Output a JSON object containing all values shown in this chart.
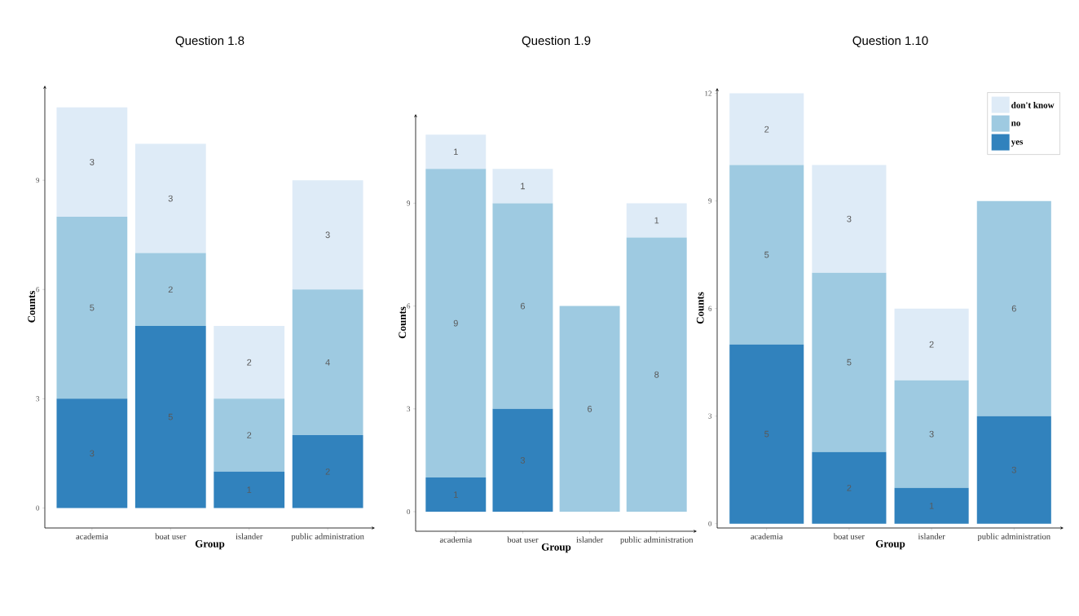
{
  "chart_data": [
    {
      "type": "bar",
      "stacked": true,
      "title": "Question 1.8",
      "xlabel": "Group",
      "ylabel": "Counts",
      "categories": [
        "academia",
        "boat user",
        "islander",
        "public administration"
      ],
      "series": [
        {
          "color": "#3182bd",
          "values": [
            3,
            5,
            1,
            2
          ]
        },
        {
          "color": "#9ecae1",
          "values": [
            5,
            2,
            2,
            4
          ]
        },
        {
          "color": "#deebf7",
          "values": [
            3,
            3,
            2,
            3
          ]
        }
      ],
      "ylim": [
        -0.55,
        11.6
      ],
      "yticks": [
        0,
        3,
        6,
        9
      ],
      "data_labels": true
    },
    {
      "type": "bar",
      "stacked": true,
      "title": "Question 1.9",
      "xlabel": "Group",
      "ylabel": "Counts",
      "categories": [
        "academia",
        "boat user",
        "islander",
        "public administration"
      ],
      "series": [
        {
          "color": "#3182bd",
          "values": [
            1,
            3,
            null,
            null
          ]
        },
        {
          "color": "#9ecae1",
          "values": [
            9,
            6,
            6,
            8
          ]
        },
        {
          "color": "#deebf7",
          "values": [
            1,
            1,
            null,
            1
          ]
        }
      ],
      "ylim": [
        -0.57,
        11.6
      ],
      "yticks": [
        0,
        3,
        6,
        9
      ],
      "data_labels": true
    },
    {
      "type": "bar",
      "stacked": true,
      "title": "Question 1.10",
      "xlabel": "Group",
      "ylabel": "Counts",
      "categories": [
        "academia",
        "boat user",
        "islander",
        "public administration"
      ],
      "series": [
        {
          "name": "yes",
          "color": "#3182bd",
          "values": [
            5,
            2,
            1,
            3
          ]
        },
        {
          "name": "no",
          "color": "#9ecae1",
          "values": [
            5,
            5,
            3,
            6
          ]
        },
        {
          "name": "don't know",
          "color": "#deebf7",
          "values": [
            2,
            3,
            2,
            null
          ]
        }
      ],
      "ylim": [
        -0.12,
        12.15
      ],
      "yticks": [
        0,
        3,
        6,
        9,
        12
      ],
      "data_labels": true,
      "legend": "top right"
    }
  ]
}
